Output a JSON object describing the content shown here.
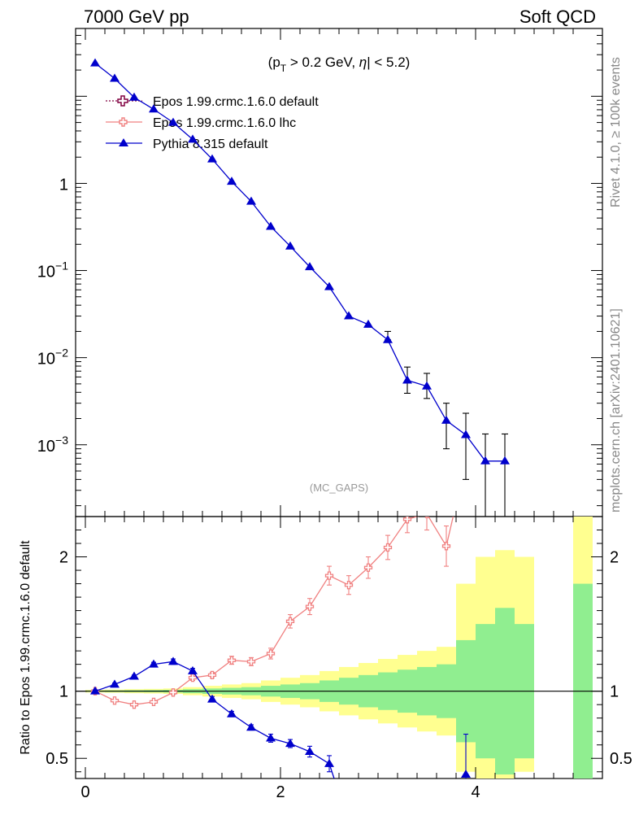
{
  "header": {
    "left": "7000 GeV pp",
    "right": "Soft QCD"
  },
  "side_text": {
    "rivet": "Rivet 4.1.0, ≥ 100k events",
    "mcplots": "mcplots.cern.ch [arXiv:2401.10621]"
  },
  "colors": {
    "epos_default": "#800040",
    "epos_lhc": "#f08080",
    "pythia": "#0000cc",
    "band_inner": "#90ee90",
    "band_outer": "#ffff90",
    "error_bar": "#000000"
  },
  "chart_data": [
    {
      "type": "line",
      "title": "(p_T > 0.2 GeV, |η| < 5.2)",
      "title_parts": {
        "a": "(p",
        "sub": "T",
        "b": " > 0.2 GeV, ",
        "eta": "η",
        "c": "| < 5.2)"
      },
      "watermark": "(MC_GAPS)",
      "yscale": "log",
      "ylim": [
        0.00015,
        60
      ],
      "xlim": [
        -0.1,
        5.3
      ],
      "ytick_labels": [
        {
          "value": 1,
          "base": "1",
          "exp": ""
        },
        {
          "value": 0.1,
          "base": "10",
          "exp": "−1"
        },
        {
          "value": 0.01,
          "base": "10",
          "exp": "−2"
        },
        {
          "value": 0.001,
          "base": "10",
          "exp": "−3"
        }
      ],
      "legend_position": "top-left",
      "series": [
        {
          "name": "Epos 1.99.crmc.1.6.0 default",
          "style": "dotted-open-cross",
          "x": [],
          "y": []
        },
        {
          "name": "Epos 1.99.crmc.1.6.0 lhc",
          "style": "solid-open-cross",
          "x": [],
          "y": []
        },
        {
          "name": "Pythia 8.315 default",
          "style": "solid-triangle",
          "x": [
            0.1,
            0.3,
            0.5,
            0.7,
            0.9,
            1.1,
            1.3,
            1.5,
            1.7,
            1.9,
            2.1,
            2.3,
            2.5,
            2.7,
            2.9,
            3.1,
            3.3,
            3.5,
            3.7,
            3.9,
            4.1,
            4.3
          ],
          "y": [
            24,
            16,
            9.7,
            7.1,
            5.0,
            3.2,
            1.9,
            1.05,
            0.62,
            0.32,
            0.19,
            0.11,
            0.065,
            0.03,
            0.024,
            0.016,
            0.0055,
            0.0047,
            0.0019,
            0.0013,
            0.00065,
            0.00065
          ],
          "yerr_low": [
            0,
            0,
            0,
            0,
            0,
            0,
            0,
            0,
            0,
            0,
            0,
            0,
            0,
            0,
            0,
            0,
            0.0016,
            0.0013,
            0.001,
            0.0009,
            0.00065,
            0.00065
          ],
          "yerr_high": [
            0,
            0,
            0,
            0,
            0,
            0,
            0,
            0,
            0,
            0,
            0,
            0,
            0,
            0,
            0,
            0.004,
            0.0023,
            0.0019,
            0.0011,
            0.001,
            0.00068,
            0.00068
          ]
        }
      ]
    },
    {
      "type": "line",
      "ylabel": "Ratio to Epos 1.99.crmc.1.6.0 default",
      "ylim": [
        0.35,
        2.3
      ],
      "xlim": [
        -0.1,
        5.3
      ],
      "yticks": [
        0.5,
        1,
        2
      ],
      "ytick_labels": [
        "0.5",
        "1",
        "2"
      ],
      "xticks": [
        0,
        2,
        4
      ],
      "xtick_labels": [
        "0",
        "2",
        "4"
      ],
      "reference_line": 1,
      "band_edges": [
        0.0,
        0.2,
        0.4,
        0.6,
        0.8,
        1.0,
        1.2,
        1.4,
        1.6,
        1.8,
        2.0,
        2.2,
        2.4,
        2.6,
        2.8,
        3.0,
        3.2,
        3.4,
        3.6,
        3.8,
        4.0,
        4.2,
        4.4,
        4.6
      ],
      "band_inner_low": [
        0.995,
        0.994,
        0.993,
        0.992,
        0.99,
        0.985,
        0.98,
        0.975,
        0.97,
        0.96,
        0.95,
        0.94,
        0.92,
        0.9,
        0.88,
        0.86,
        0.84,
        0.82,
        0.8,
        0.62,
        0.5,
        0.38,
        0.5
      ],
      "band_inner_high": [
        1.005,
        1.006,
        1.007,
        1.008,
        1.01,
        1.015,
        1.02,
        1.025,
        1.03,
        1.04,
        1.05,
        1.06,
        1.08,
        1.1,
        1.12,
        1.14,
        1.16,
        1.18,
        1.2,
        1.38,
        1.5,
        1.62,
        1.5
      ],
      "band_outer_low": [
        0.99,
        0.988,
        0.985,
        0.983,
        0.98,
        0.97,
        0.96,
        0.95,
        0.94,
        0.92,
        0.9,
        0.88,
        0.85,
        0.82,
        0.79,
        0.76,
        0.73,
        0.7,
        0.67,
        0.4,
        0.35,
        0.35,
        0.4
      ],
      "band_outer_high": [
        1.01,
        1.012,
        1.015,
        1.017,
        1.02,
        1.03,
        1.04,
        1.05,
        1.06,
        1.08,
        1.1,
        1.12,
        1.15,
        1.18,
        1.21,
        1.24,
        1.27,
        1.3,
        1.33,
        1.8,
        2.0,
        2.05,
        2.0
      ],
      "tail_band": {
        "x0": 5.0,
        "x1": 5.2,
        "inner_low": 0.35,
        "inner_high": 1.8,
        "outer_low": 0.35,
        "outer_high": 2.3
      },
      "series": [
        {
          "name": "Epos 1.99.crmc.1.6.0 lhc",
          "x": [
            0.1,
            0.3,
            0.5,
            0.7,
            0.9,
            1.1,
            1.3,
            1.5,
            1.7,
            1.9,
            2.1,
            2.3,
            2.5,
            2.7,
            2.9,
            3.1,
            3.3,
            3.5,
            3.7,
            3.77
          ],
          "y": [
            1.0,
            0.93,
            0.9,
            0.92,
            0.99,
            1.1,
            1.12,
            1.23,
            1.22,
            1.28,
            1.52,
            1.63,
            1.86,
            1.79,
            1.92,
            2.07,
            2.28,
            2.32,
            2.08,
            2.3
          ],
          "yerr": [
            0.01,
            0.01,
            0.01,
            0.01,
            0.015,
            0.02,
            0.02,
            0.03,
            0.03,
            0.04,
            0.05,
            0.06,
            0.07,
            0.07,
            0.08,
            0.09,
            0.1,
            0.12,
            0.15,
            0
          ]
        },
        {
          "name": "Pythia 8.315 default",
          "x": [
            0.1,
            0.3,
            0.5,
            0.7,
            0.9,
            1.1,
            1.3,
            1.5,
            1.7,
            1.9,
            2.1,
            2.3,
            2.5,
            2.55,
            3.9
          ],
          "y": [
            1.0,
            1.05,
            1.11,
            1.2,
            1.22,
            1.15,
            0.94,
            0.83,
            0.73,
            0.65,
            0.61,
            0.55,
            0.46,
            0.35,
            0.38
          ],
          "yerr": [
            0.01,
            0.01,
            0.01,
            0.015,
            0.02,
            0.02,
            0.02,
            0.02,
            0.02,
            0.03,
            0.03,
            0.04,
            0.06,
            0,
            0.3
          ]
        }
      ]
    }
  ]
}
